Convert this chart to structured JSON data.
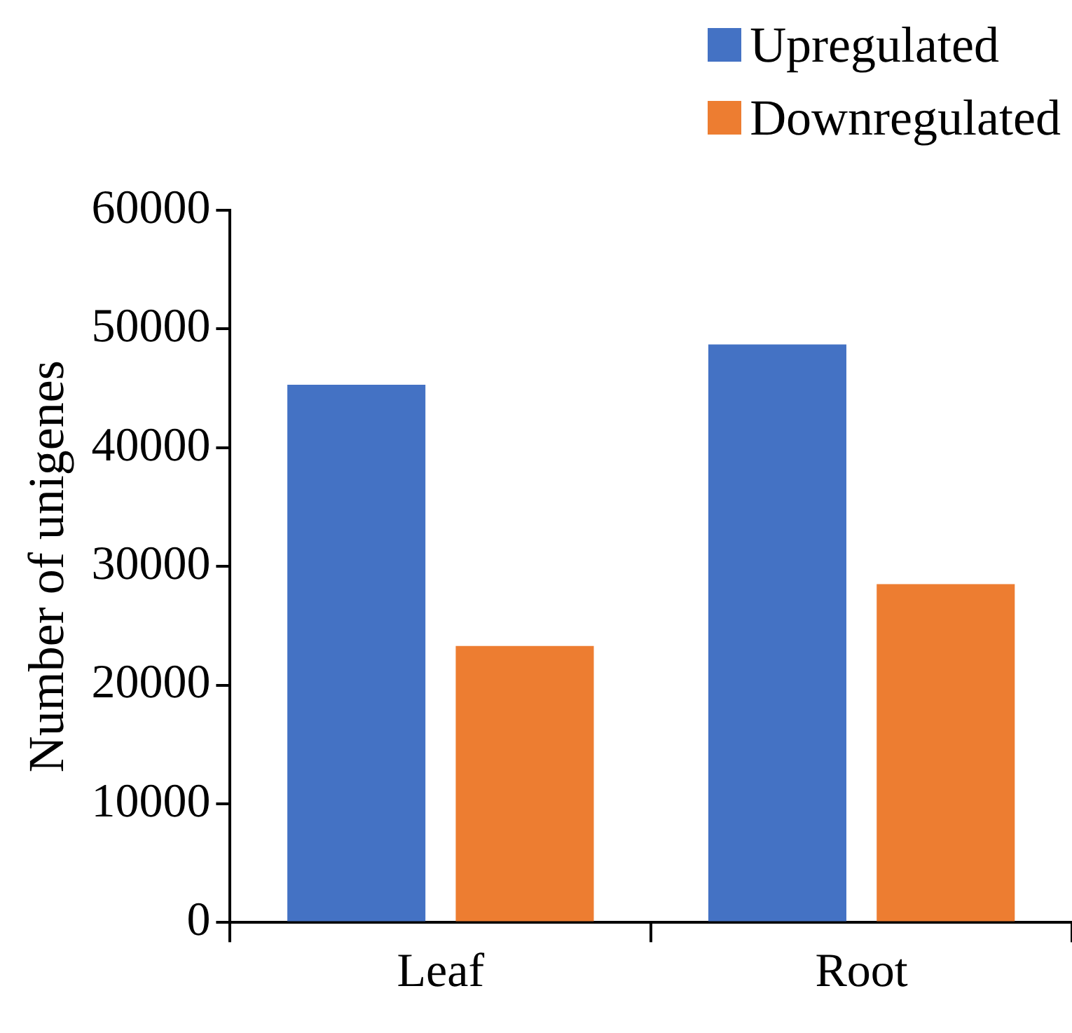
{
  "chart_data": {
    "type": "bar",
    "ylabel": "Number of unigenes",
    "categories": [
      "Leaf",
      "Root"
    ],
    "series": [
      {
        "name": "Upregulated",
        "color": "#4472c4",
        "values": [
          45300,
          48700
        ]
      },
      {
        "name": "Downregulated",
        "color": "#ed7d31",
        "values": [
          23300,
          28500
        ]
      }
    ],
    "ylim": [
      0,
      60000
    ],
    "yticks": [
      0,
      10000,
      20000,
      30000,
      40000,
      50000,
      60000
    ],
    "grid": false,
    "legend": "top right"
  }
}
